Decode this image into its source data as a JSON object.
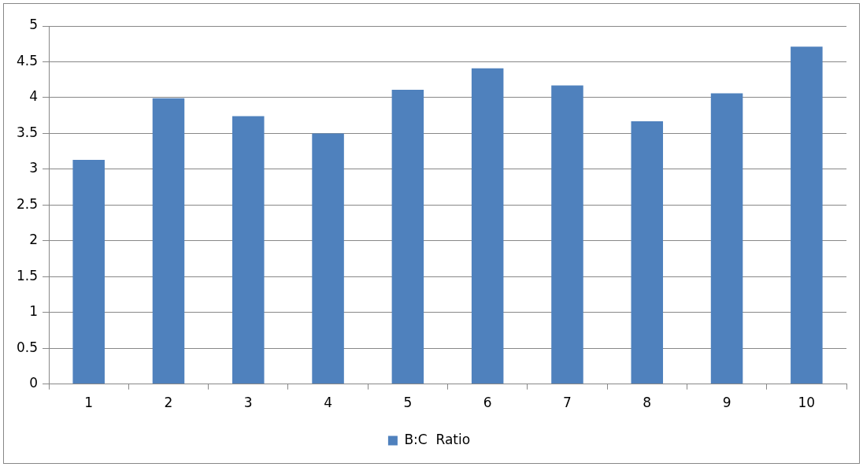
{
  "chart_data": {
    "type": "bar",
    "categories": [
      "1",
      "2",
      "3",
      "4",
      "5",
      "6",
      "7",
      "8",
      "9",
      "10"
    ],
    "series": [
      {
        "name": "B:C  Ratio",
        "color": "#4f81bd",
        "values": [
          3.13,
          3.99,
          3.74,
          3.5,
          4.11,
          4.41,
          4.17,
          3.67,
          4.06,
          4.71
        ]
      }
    ],
    "ylim": [
      0,
      5
    ],
    "yticks": [
      0,
      0.5,
      1,
      1.5,
      2,
      2.5,
      3,
      3.5,
      4,
      4.5,
      5
    ],
    "grid": "y",
    "legend": "bottom"
  }
}
